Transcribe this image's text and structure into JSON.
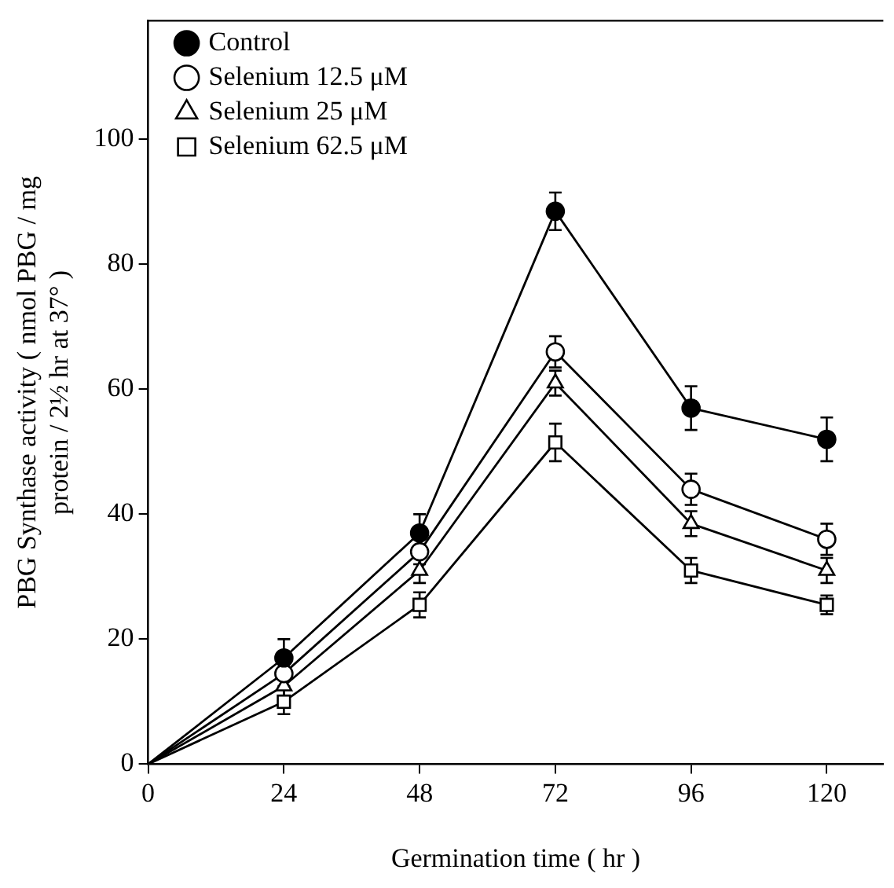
{
  "chart_data": {
    "type": "line",
    "xlabel": "Germination time ( hr )",
    "ylabel": "PBG Synthase activity ( nmol PBG / mg protein / 2½ hr at 37° )",
    "x": [
      0,
      24,
      48,
      72,
      96,
      120
    ],
    "series": [
      {
        "name": "Control",
        "color": "#000000",
        "marker": "circle",
        "values": [
          0,
          17,
          37,
          88.5,
          57,
          52
        ],
        "errors": [
          null,
          3,
          3,
          3,
          3.5,
          3.5
        ]
      },
      {
        "name": "Selenium 12.5 μM",
        "color": "#000000",
        "marker": "circle",
        "values": [
          0,
          14.5,
          34,
          66,
          44,
          36
        ],
        "errors": [
          null,
          2,
          2,
          2.5,
          2.5,
          2.5
        ]
      },
      {
        "name": "Selenium 25 μM",
        "color": "#000000",
        "marker": "triangle",
        "values": [
          0,
          12.5,
          31,
          61,
          38.5,
          31
        ],
        "errors": [
          null,
          2,
          2,
          2,
          2,
          2
        ]
      },
      {
        "name": "Selenium 62.5 μM",
        "color": "#000000",
        "marker": "square",
        "values": [
          0,
          10,
          25.5,
          51.5,
          31,
          25.5
        ],
        "errors": [
          null,
          2,
          2,
          3,
          2,
          1.5
        ]
      }
    ],
    "xlim": [
      0,
      130
    ],
    "xticks": [
      0,
      24,
      48,
      72,
      96,
      120
    ],
    "ylim": [
      0,
      119
    ],
    "yticks": [
      0,
      20,
      40,
      60,
      80,
      100
    ],
    "grid": false,
    "legend": "top left",
    "line_style": "solid"
  }
}
